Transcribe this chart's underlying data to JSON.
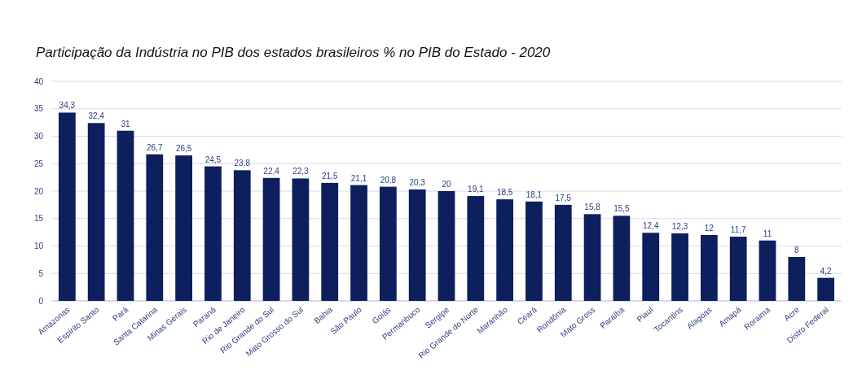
{
  "chart_data": {
    "type": "bar",
    "title": "Participação da Indústria no PIB dos estados brasileiros % no PIB do Estado - 2020",
    "categories": [
      "Amazonas",
      "Espírito Santo",
      "Pará",
      "Santa Catarina",
      "Minas Gerais",
      "Paraná",
      "Rio de Janeiro",
      "Rio Grande do Sul",
      "Mato Grosso do Sul",
      "Bahia",
      "São Paulo",
      "Goiás",
      "Permanbuco",
      "Sergipe",
      "Rio Grande do Norte",
      "Maranhão",
      "Ceará",
      "Rondônia",
      "Mato Gross",
      "Paraíba",
      "Piauí",
      "Tocantins",
      "Alagoas",
      "Amapá",
      "Roraima",
      "Acre",
      "Distro Federal"
    ],
    "values": [
      34.3,
      32.4,
      31,
      26.7,
      26.5,
      24.5,
      23.8,
      22.4,
      22.3,
      21.5,
      21.1,
      20.8,
      20.3,
      20,
      19.1,
      18.5,
      18.1,
      17.5,
      15.8,
      15.5,
      12.4,
      12.3,
      12,
      11.7,
      11,
      8,
      4.2
    ],
    "value_labels": [
      "34,3",
      "32,4",
      "31",
      "26,7",
      "26,5",
      "24,5",
      "23,8",
      "22,4",
      "22,3",
      "21,5",
      "21,1",
      "20,8",
      "20,3",
      "20",
      "19,1",
      "18,5",
      "18,1",
      "17,5",
      "15,8",
      "15,5",
      "12,4",
      "12,3",
      "12",
      "11,7",
      "11",
      "8",
      "4,2"
    ],
    "color": "#0d1f5c",
    "ylim": [
      0,
      40
    ],
    "yticks": [
      0,
      5,
      10,
      15,
      20,
      25,
      30,
      35,
      40
    ],
    "grid": "y"
  }
}
